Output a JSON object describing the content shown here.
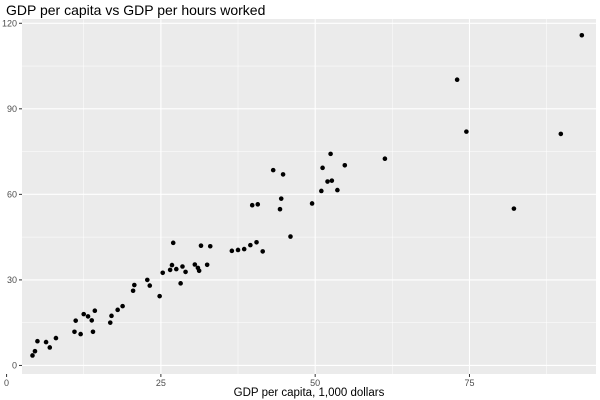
{
  "chart_data": {
    "type": "scatter",
    "title": "GDP per capita vs GDP per hours worked",
    "xlabel": "GDP per capita, 1,000 dollars",
    "ylabel": "",
    "xlim": [
      2.5,
      95.5
    ],
    "ylim": [
      -3,
      121.5
    ],
    "x_ticks": [
      0,
      25,
      50,
      75
    ],
    "x_minor_ticks": [
      12.5,
      37.5,
      62.5,
      87.5
    ],
    "y_ticks": [
      0,
      30,
      60,
      90,
      120
    ],
    "y_minor_ticks": [
      15,
      45,
      75,
      105
    ],
    "grid": true,
    "legend": "none",
    "colors": {
      "panel": "#ebebeb",
      "grid": "#ffffff",
      "point": "#000000",
      "tick": "#4d4d4d"
    },
    "points": [
      {
        "x": 4.2,
        "y": 3.5
      },
      {
        "x": 4.6,
        "y": 5.0
      },
      {
        "x": 5.0,
        "y": 8.5
      },
      {
        "x": 6.4,
        "y": 8.2
      },
      {
        "x": 7.0,
        "y": 6.3
      },
      {
        "x": 8.0,
        "y": 9.6
      },
      {
        "x": 11.0,
        "y": 11.8
      },
      {
        "x": 11.2,
        "y": 15.7
      },
      {
        "x": 12.0,
        "y": 11.0
      },
      {
        "x": 12.5,
        "y": 18.0
      },
      {
        "x": 13.2,
        "y": 17.2
      },
      {
        "x": 13.8,
        "y": 15.8
      },
      {
        "x": 14.0,
        "y": 11.8
      },
      {
        "x": 14.3,
        "y": 19.2
      },
      {
        "x": 16.8,
        "y": 15.0
      },
      {
        "x": 17.0,
        "y": 17.4
      },
      {
        "x": 18.0,
        "y": 19.5
      },
      {
        "x": 18.8,
        "y": 20.8
      },
      {
        "x": 20.5,
        "y": 26.2
      },
      {
        "x": 20.7,
        "y": 28.2
      },
      {
        "x": 22.8,
        "y": 30.0
      },
      {
        "x": 23.2,
        "y": 28.0
      },
      {
        "x": 24.8,
        "y": 24.3
      },
      {
        "x": 25.3,
        "y": 32.5
      },
      {
        "x": 26.5,
        "y": 33.5
      },
      {
        "x": 26.8,
        "y": 35.2
      },
      {
        "x": 27.0,
        "y": 43.0
      },
      {
        "x": 27.5,
        "y": 33.8
      },
      {
        "x": 28.2,
        "y": 28.8
      },
      {
        "x": 28.5,
        "y": 34.7
      },
      {
        "x": 29.0,
        "y": 32.8
      },
      {
        "x": 30.5,
        "y": 35.4
      },
      {
        "x": 31.0,
        "y": 34.2
      },
      {
        "x": 31.2,
        "y": 33.2
      },
      {
        "x": 31.5,
        "y": 42.0
      },
      {
        "x": 32.5,
        "y": 35.3
      },
      {
        "x": 33.0,
        "y": 41.8
      },
      {
        "x": 36.5,
        "y": 40.2
      },
      {
        "x": 37.5,
        "y": 40.5
      },
      {
        "x": 38.5,
        "y": 40.8
      },
      {
        "x": 39.5,
        "y": 42.2
      },
      {
        "x": 39.8,
        "y": 56.2
      },
      {
        "x": 40.5,
        "y": 43.2
      },
      {
        "x": 40.7,
        "y": 56.5
      },
      {
        "x": 41.5,
        "y": 40.0
      },
      {
        "x": 43.2,
        "y": 68.5
      },
      {
        "x": 44.3,
        "y": 54.8
      },
      {
        "x": 44.5,
        "y": 58.5
      },
      {
        "x": 44.8,
        "y": 67.0
      },
      {
        "x": 46.0,
        "y": 45.2
      },
      {
        "x": 49.5,
        "y": 56.8
      },
      {
        "x": 51.0,
        "y": 61.2
      },
      {
        "x": 51.2,
        "y": 69.3
      },
      {
        "x": 52.0,
        "y": 64.5
      },
      {
        "x": 52.5,
        "y": 74.2
      },
      {
        "x": 52.7,
        "y": 64.8
      },
      {
        "x": 53.6,
        "y": 61.5
      },
      {
        "x": 54.8,
        "y": 70.2
      },
      {
        "x": 61.3,
        "y": 72.5
      },
      {
        "x": 73.0,
        "y": 100.2
      },
      {
        "x": 74.5,
        "y": 82.0
      },
      {
        "x": 82.2,
        "y": 55.0
      },
      {
        "x": 89.8,
        "y": 81.2
      },
      {
        "x": 93.2,
        "y": 115.8
      }
    ]
  }
}
